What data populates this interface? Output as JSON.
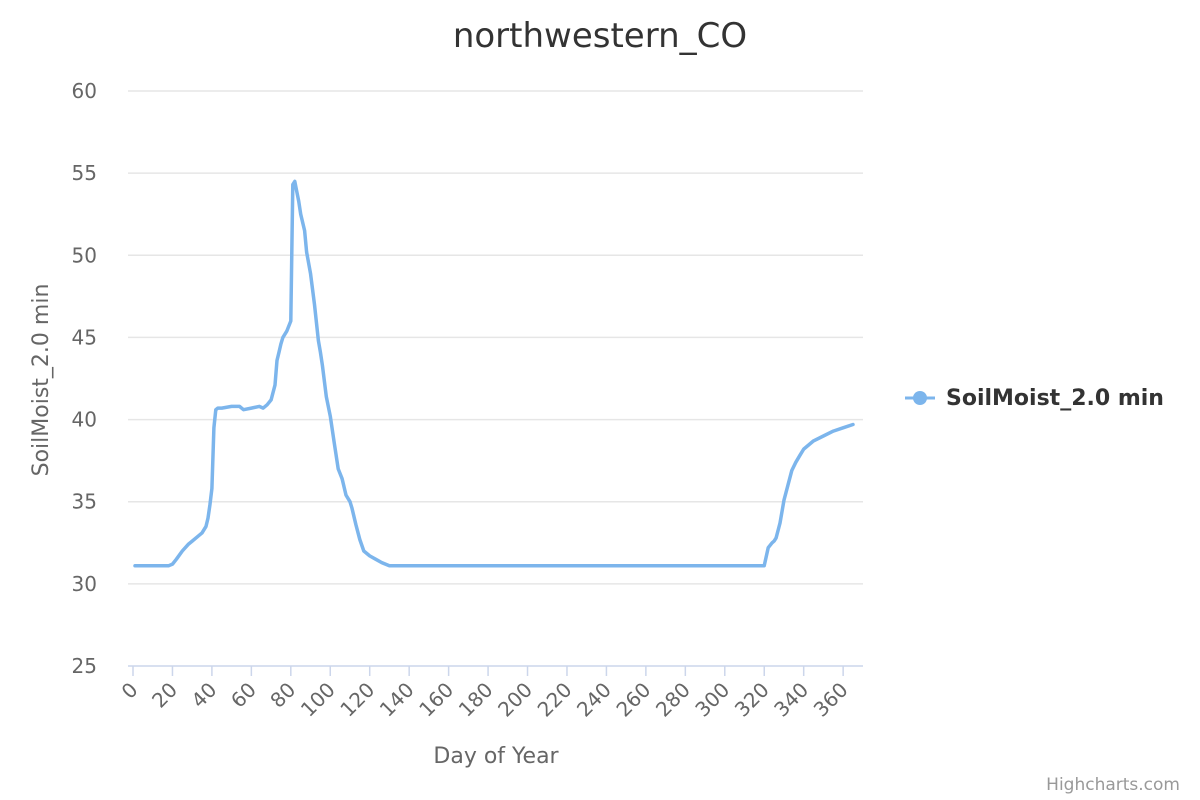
{
  "chart_data": {
    "type": "line",
    "title": "northwestern_CO",
    "xlabel": "Day of Year",
    "ylabel": "SoilMoist_2.0 min",
    "xlim": [
      0,
      365
    ],
    "ylim": [
      25,
      60
    ],
    "xticks": [
      0,
      20,
      40,
      60,
      80,
      100,
      120,
      140,
      160,
      180,
      200,
      220,
      240,
      260,
      280,
      300,
      320,
      340,
      360
    ],
    "yticks": [
      25,
      30,
      35,
      40,
      45,
      50,
      55,
      60
    ],
    "grid": true,
    "legend_position": "right",
    "series": [
      {
        "name": "SoilMoist_2.0 min",
        "color": "#7cb5ec",
        "x": [
          1,
          5,
          10,
          15,
          18,
          20,
          22,
          25,
          28,
          30,
          33,
          35,
          37,
          38,
          39,
          40,
          41,
          42,
          43,
          44,
          45,
          50,
          54,
          56,
          60,
          64,
          66,
          68,
          70,
          72,
          73,
          74,
          75,
          76,
          78,
          80,
          81,
          82,
          83,
          84,
          85,
          87,
          88,
          90,
          92,
          94,
          95,
          96,
          98,
          100,
          102,
          104,
          106,
          108,
          110,
          111,
          113,
          115,
          117,
          120,
          123,
          126,
          130,
          140,
          160,
          200,
          250,
          300,
          310,
          316,
          318,
          320,
          322,
          324,
          325,
          326,
          328,
          330,
          332,
          334,
          336,
          338,
          340,
          345,
          350,
          355,
          360,
          365
        ],
        "y": [
          31.1,
          31.1,
          31.1,
          31.1,
          31.1,
          31.2,
          31.5,
          32.0,
          32.4,
          32.6,
          32.9,
          33.1,
          33.5,
          34.0,
          34.8,
          35.8,
          39.5,
          40.6,
          40.7,
          40.7,
          40.7,
          40.8,
          40.8,
          40.6,
          40.7,
          40.8,
          40.7,
          40.9,
          41.2,
          42.1,
          43.6,
          44.1,
          44.6,
          45.0,
          45.4,
          46.0,
          54.3,
          54.5,
          53.9,
          53.3,
          52.5,
          51.5,
          50.2,
          48.9,
          47.0,
          44.8,
          44.1,
          43.3,
          41.4,
          40.2,
          38.6,
          37.0,
          36.4,
          35.4,
          35.0,
          34.6,
          33.6,
          32.7,
          32.0,
          31.7,
          31.5,
          31.3,
          31.1,
          31.1,
          31.1,
          31.1,
          31.1,
          31.1,
          31.1,
          31.1,
          31.1,
          31.1,
          32.2,
          32.5,
          32.6,
          32.8,
          33.7,
          35.1,
          36.0,
          36.9,
          37.4,
          37.8,
          38.2,
          38.7,
          39.0,
          39.3,
          39.5,
          39.7
        ]
      }
    ]
  },
  "credits": "Highcharts.com"
}
